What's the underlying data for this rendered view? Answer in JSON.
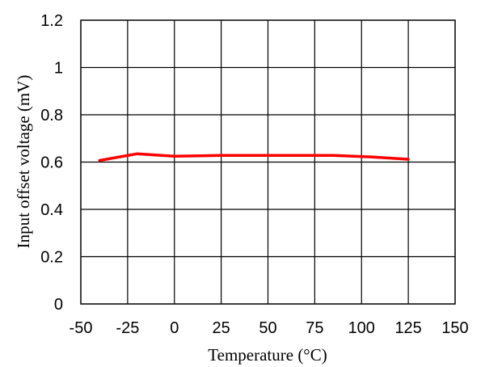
{
  "chart_data": {
    "type": "line",
    "title": "",
    "xlabel": "Temperature (°C)",
    "ylabel": "Input offset voltage (mV)",
    "xlim": [
      -50,
      150
    ],
    "ylim": [
      0,
      1.2
    ],
    "xticks": [
      -50,
      -25,
      0,
      25,
      50,
      75,
      100,
      125,
      150
    ],
    "yticks": [
      0,
      0.2,
      0.4,
      0.6,
      0.8,
      1,
      1.2
    ],
    "xtick_labels": [
      "-50",
      "-25",
      "0",
      "25",
      "50",
      "75",
      "100",
      "125",
      "150"
    ],
    "ytick_labels": [
      "0",
      "0.2",
      "0.4",
      "0.6",
      "0.8",
      "1",
      "1.2"
    ],
    "grid": true,
    "legend": "none",
    "series": [
      {
        "color": "#ff0000",
        "x": [
          -40,
          -20,
          0,
          25,
          50,
          85,
          105,
          125
        ],
        "y": [
          0.607,
          0.635,
          0.625,
          0.628,
          0.628,
          0.628,
          0.622,
          0.612
        ]
      }
    ]
  }
}
